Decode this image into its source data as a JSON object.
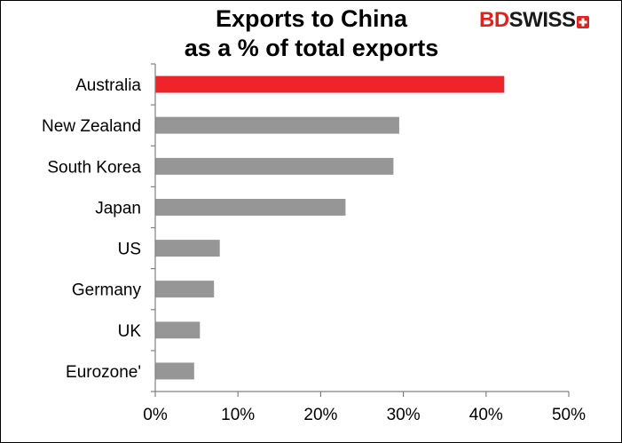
{
  "logo": {
    "brand_a": "BD",
    "brand_b": "SWISS"
  },
  "chart_data": {
    "type": "bar",
    "orientation": "horizontal",
    "title_line1": "Exports to China",
    "title_line2": "as a % of total exports",
    "categories": [
      "Australia",
      "New Zealand",
      "South Korea",
      "Japan",
      "US",
      "Germany",
      "UK",
      "Eurozone'"
    ],
    "values": [
      42.2,
      29.5,
      28.8,
      23.0,
      7.8,
      7.1,
      5.4,
      4.7
    ],
    "highlight_category": "Australia",
    "xlim": [
      0,
      50
    ],
    "xticks": [
      0,
      10,
      20,
      30,
      40,
      50
    ],
    "tick_suffix": "%",
    "grid": false,
    "colors": {
      "highlight": "#ee2428",
      "default": "#969696",
      "axis": "#808080"
    }
  }
}
